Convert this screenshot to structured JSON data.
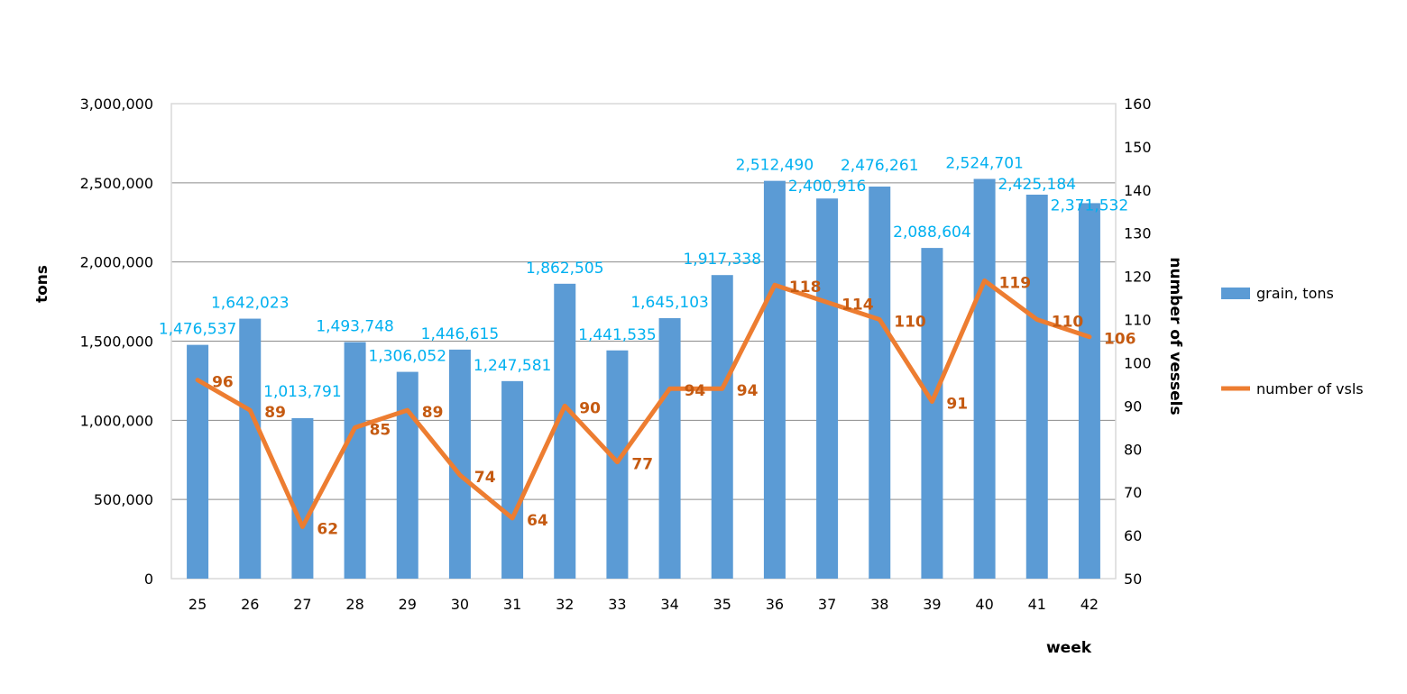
{
  "chart_data": {
    "type": "bar+line",
    "categories": [
      "25",
      "26",
      "27",
      "28",
      "29",
      "30",
      "31",
      "32",
      "33",
      "34",
      "35",
      "36",
      "37",
      "38",
      "39",
      "40",
      "41",
      "42"
    ],
    "series": [
      {
        "name": "grain, tons",
        "type": "bar",
        "axis": "left",
        "values": [
          1476537,
          1642023,
          1013791,
          1493748,
          1306052,
          1446615,
          1247581,
          1862505,
          1441535,
          1645103,
          1917338,
          2512490,
          2400916,
          2476261,
          2088604,
          2524701,
          2425184,
          2371532
        ],
        "labels": [
          "1,476,537",
          "1,642,023",
          "1,013,791",
          "1,493,748",
          "1,306,052",
          "1,446,615",
          "1,247,581",
          "1,862,505",
          "1,441,535",
          "1,645,103",
          "1,917,338",
          "2,512,490",
          "2,400,916",
          "2,476,261",
          "2,088,604",
          "2,524,701",
          "2,425,184",
          "2,371,532"
        ]
      },
      {
        "name": "number of vsls",
        "type": "line",
        "axis": "right",
        "values": [
          96,
          89,
          62,
          85,
          89,
          74,
          64,
          90,
          77,
          94,
          94,
          118,
          114,
          110,
          91,
          119,
          110,
          106
        ]
      }
    ],
    "xlabel": "week",
    "ylabel": "tons",
    "y2label": "number of vessels",
    "ylim": [
      0,
      3000000
    ],
    "y2lim": [
      50,
      160
    ],
    "yticks": [
      "0",
      "500,000",
      "1,000,000",
      "1,500,000",
      "2,000,000",
      "2,500,000",
      "3,000,000"
    ],
    "y2ticks": [
      "50",
      "60",
      "70",
      "80",
      "90",
      "100",
      "110",
      "120",
      "130",
      "140",
      "150",
      "160"
    ],
    "grid": true,
    "legend": "right",
    "colors": {
      "bar": "#5B9BD5",
      "line": "#ED7D31",
      "bar_label": "#00B0F0",
      "line_label": "#C55A11"
    }
  }
}
